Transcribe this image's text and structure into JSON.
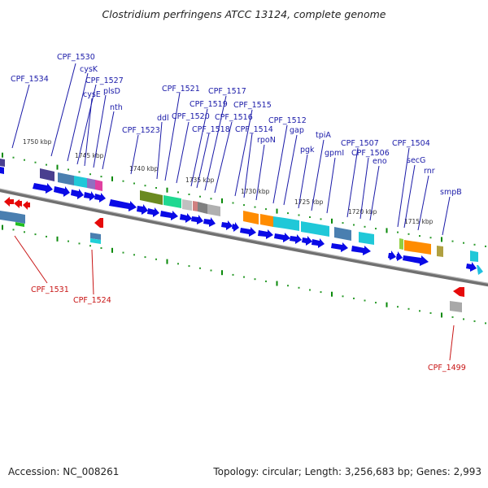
{
  "title": "Clostridium perfringens ATCC 13124, complete genome",
  "footer": {
    "accession_label": "Accession:",
    "accession": "NC_008261",
    "topology_label": "Topology:",
    "topology": "circular",
    "length_label": "Length:",
    "length": "3,256,683 bp",
    "genes_label": "Genes:",
    "genes": "2,993"
  },
  "kbp_ticks": [
    "1750 kbp",
    "1745 kbp",
    "1740 kbp",
    "1735 kbp",
    "1730 kbp",
    "1725 kbp",
    "1720 kbp",
    "1715 kbp"
  ],
  "forward_gene_labels": [
    "CPF_1534",
    "CPF_1530",
    "cysK",
    "CPF_1527",
    "cysE",
    "plsD",
    "nth",
    "CPF_1523",
    "ddl",
    "CPF_1521",
    "CPF_1520",
    "CPF_1519",
    "CPF_1518",
    "CPF_1517",
    "CPF_1516",
    "CPF_1515",
    "CPF_1514",
    "rpoN",
    "CPF_1512",
    "gap",
    "pgk",
    "tpiA",
    "gpmI",
    "CPF_1507",
    "CPF_1506",
    "eno",
    "CPF_1504",
    "secG",
    "rnr",
    "smpB"
  ],
  "reverse_gene_labels": [
    "CPF_1531",
    "CPF_1524",
    "CPF_1499"
  ],
  "colors": {
    "forward_arrow": "#0a0ae6",
    "reverse_arrow": "#e60a0a",
    "forward_label": "#1a1aa8",
    "reverse_label": "#c81414",
    "backbone": "#808080",
    "tick_major": "#0a8a0a",
    "cog_blocks": [
      "#4a3f8f",
      "#4a7fb0",
      "#20c8d8",
      "#e040a0",
      "#6a8a20",
      "#20d890",
      "#c0c0c0",
      "#d08080",
      "#ff8c00",
      "#90d040",
      "#b0a040",
      "#808080"
    ]
  }
}
